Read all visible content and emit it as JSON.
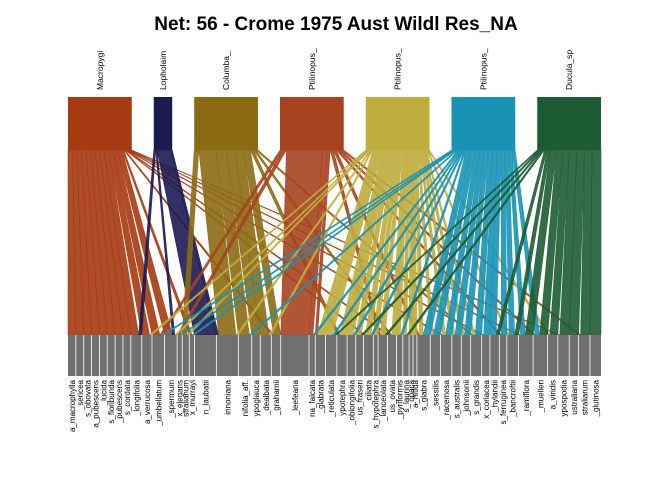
{
  "chart_data": {
    "type": "bipartite",
    "title": "Net: 56 - Crome 1975 Aust Wildl Res_NA",
    "higher_level": [
      {
        "label": "Macropygi",
        "color": "#A63A12",
        "weight": 7.6
      },
      {
        "label": "Lopholaim",
        "color": "#1B1B52",
        "weight": 2.2
      },
      {
        "label": "Columba_",
        "color": "#8C6A14",
        "weight": 7.6
      },
      {
        "label": "Ptilinopus_",
        "color": "#A7431F",
        "weight": 7.6
      },
      {
        "label": "Ptilinopus_",
        "color": "#BFAD3E",
        "weight": 7.6
      },
      {
        "label": "Ptilinopus_",
        "color": "#1892B5",
        "weight": 7.6
      },
      {
        "label": "Ducula_sp",
        "color": "#1D5C33",
        "weight": 7.6
      }
    ],
    "lower_level": [
      {
        "label": "a_macrophylla"
      },
      {
        "label": "_sericea"
      },
      {
        "label": "s_obovata"
      },
      {
        "label": "a_pubescens"
      },
      {
        "label": "_lucida"
      },
      {
        "label": "s_floribunda"
      },
      {
        "label": "_pubescens"
      },
      {
        "label": "s_cordata"
      },
      {
        "label": "_longifolia"
      },
      {
        "label": "a_verrucosa"
      },
      {
        "label": "_umbellatum"
      },
      {
        "label": "_spermum"
      },
      {
        "label": "x_elegans"
      },
      {
        "label": "stralianum"
      },
      {
        "label": "x_murrayi"
      },
      {
        "label": "n_laubatii"
      },
      {
        "label": "innoniana"
      },
      {
        "label": "nifolia_aff."
      },
      {
        "label": "ypoglauca"
      },
      {
        "label": "_dealbata"
      },
      {
        "label": "_grahamii"
      },
      {
        "label": "_leefeana"
      },
      {
        "label": "na_falcata"
      },
      {
        "label": "_glabrata"
      },
      {
        "label": "_reticulata"
      },
      {
        "label": "ypotephra"
      },
      {
        "label": "_oblongifolia"
      },
      {
        "label": "us_fraseri"
      },
      {
        "label": "_ciliata"
      },
      {
        "label": "s_hypotephra"
      },
      {
        "label": "_lanceolata"
      },
      {
        "label": "us_ovata"
      },
      {
        "label": "_pyriformis"
      },
      {
        "label": "s_laurina"
      },
      {
        "label": "_opaca"
      },
      {
        "label": "a_nitida"
      },
      {
        "label": "s_glabra"
      },
      {
        "label": "_sessilis"
      },
      {
        "label": "_racemosa"
      },
      {
        "label": "s_australis"
      },
      {
        "label": "_johnsonii"
      },
      {
        "label": "s_grandis"
      },
      {
        "label": "x_coriacea"
      },
      {
        "label": "_hylandii"
      },
      {
        "label": "s_ferruginea"
      },
      {
        "label": "_bancroftii"
      },
      {
        "label": "_ramiflora"
      },
      {
        "label": "_muelleri"
      },
      {
        "label": "a_viridis"
      },
      {
        "label": "ypospodia"
      },
      {
        "label": "ustraliana"
      },
      {
        "label": "straliarum"
      },
      {
        "label": "_glutinosa"
      }
    ],
    "links": [
      [
        0,
        0,
        1
      ],
      [
        0,
        1,
        1
      ],
      [
        0,
        2,
        1
      ],
      [
        0,
        3,
        1
      ],
      [
        0,
        4,
        1
      ],
      [
        0,
        5,
        1
      ],
      [
        0,
        6,
        1
      ],
      [
        0,
        7,
        1
      ],
      [
        0,
        8,
        1
      ],
      [
        0,
        9,
        1
      ],
      [
        0,
        10,
        1
      ],
      [
        0,
        11,
        1
      ],
      [
        0,
        14,
        0.35
      ],
      [
        0,
        20,
        0.3
      ],
      [
        0,
        28,
        0.25
      ],
      [
        0,
        31,
        0.25
      ],
      [
        0,
        38,
        0.25
      ],
      [
        0,
        42,
        0.25
      ],
      [
        0,
        46,
        0.25
      ],
      [
        0,
        49,
        0.25
      ],
      [
        1,
        15,
        2.8
      ],
      [
        1,
        8,
        0.4
      ],
      [
        1,
        11,
        0.3
      ],
      [
        1,
        16,
        0.3
      ],
      [
        2,
        16,
        2.2
      ],
      [
        2,
        17,
        1.4
      ],
      [
        2,
        18,
        1.1
      ],
      [
        2,
        19,
        1.1
      ],
      [
        2,
        20,
        0.9
      ],
      [
        2,
        13,
        0.6
      ],
      [
        2,
        25,
        0.4
      ],
      [
        2,
        31,
        0.3
      ],
      [
        2,
        41,
        0.3
      ],
      [
        3,
        21,
        3.6
      ],
      [
        3,
        22,
        0.5
      ],
      [
        3,
        12,
        0.35
      ],
      [
        3,
        10,
        0.3
      ],
      [
        3,
        23,
        0.3
      ],
      [
        3,
        30,
        0.3
      ],
      [
        3,
        36,
        0.3
      ],
      [
        3,
        44,
        0.25
      ],
      [
        3,
        47,
        0.25
      ],
      [
        3,
        51,
        0.25
      ],
      [
        4,
        23,
        1.0
      ],
      [
        4,
        24,
        0.9
      ],
      [
        4,
        25,
        0.9
      ],
      [
        4,
        26,
        0.8
      ],
      [
        4,
        27,
        0.7
      ],
      [
        4,
        28,
        0.7
      ],
      [
        4,
        29,
        0.6
      ],
      [
        4,
        30,
        0.6
      ],
      [
        4,
        31,
        0.6
      ],
      [
        4,
        32,
        0.5
      ],
      [
        4,
        33,
        0.5
      ],
      [
        4,
        34,
        0.5
      ],
      [
        4,
        35,
        0.5
      ],
      [
        4,
        36,
        0.5
      ],
      [
        4,
        37,
        0.4
      ],
      [
        4,
        38,
        0.4
      ],
      [
        4,
        39,
        0.4
      ],
      [
        4,
        40,
        0.4
      ],
      [
        4,
        41,
        0.3
      ],
      [
        4,
        9,
        0.3
      ],
      [
        4,
        11,
        0.3
      ],
      [
        4,
        13,
        0.3
      ],
      [
        4,
        16,
        0.3
      ],
      [
        4,
        19,
        0.3
      ],
      [
        4,
        45,
        0.3
      ],
      [
        4,
        48,
        0.3
      ],
      [
        5,
        36,
        0.9
      ],
      [
        5,
        37,
        0.9
      ],
      [
        5,
        38,
        0.8
      ],
      [
        5,
        39,
        0.8
      ],
      [
        5,
        40,
        0.8
      ],
      [
        5,
        41,
        0.8
      ],
      [
        5,
        42,
        0.8
      ],
      [
        5,
        43,
        0.8
      ],
      [
        5,
        44,
        0.7
      ],
      [
        5,
        45,
        0.7
      ],
      [
        5,
        46,
        0.6
      ],
      [
        5,
        47,
        0.6
      ],
      [
        5,
        10,
        0.3
      ],
      [
        5,
        12,
        0.3
      ],
      [
        5,
        14,
        0.3
      ],
      [
        5,
        17,
        0.3
      ],
      [
        5,
        22,
        0.3
      ],
      [
        5,
        24,
        0.3
      ],
      [
        5,
        26,
        0.3
      ],
      [
        5,
        28,
        0.3
      ],
      [
        5,
        32,
        0.3
      ],
      [
        6,
        46,
        1.0
      ],
      [
        6,
        47,
        1.0
      ],
      [
        6,
        48,
        1.0
      ],
      [
        6,
        49,
        1.2
      ],
      [
        6,
        50,
        1.2
      ],
      [
        6,
        51,
        1.2
      ],
      [
        6,
        52,
        1.4
      ],
      [
        6,
        45,
        0.5
      ],
      [
        6,
        43,
        0.4
      ],
      [
        6,
        30,
        0.3
      ],
      [
        6,
        33,
        0.3
      ],
      [
        6,
        27,
        0.3
      ],
      [
        6,
        24,
        0.25
      ]
    ]
  }
}
